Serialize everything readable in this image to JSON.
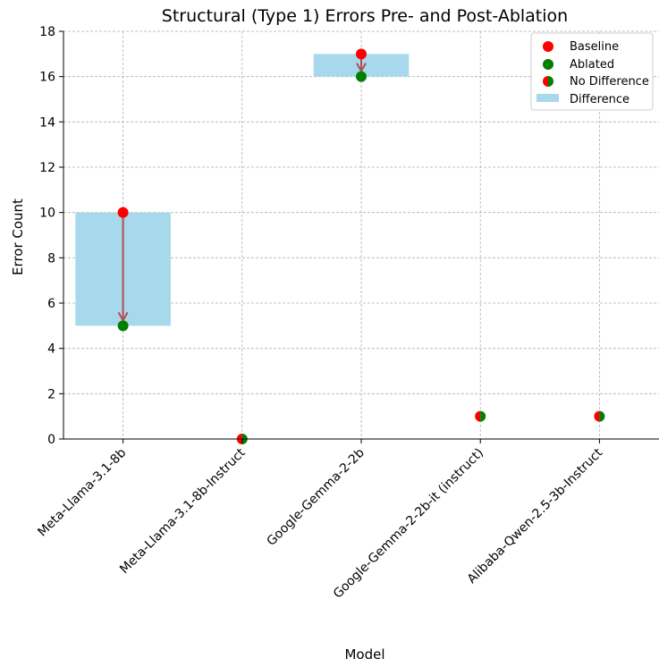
{
  "chart_data": {
    "type": "scatter",
    "title": "Structural (Type 1) Errors Pre- and Post-Ablation",
    "xlabel": "Model",
    "ylabel": "Error Count",
    "ylim": [
      0,
      18
    ],
    "yticks": [
      0,
      2,
      4,
      6,
      8,
      10,
      12,
      14,
      16,
      18
    ],
    "grid": true,
    "legend_position": "top-right",
    "categories": [
      "Meta-Llama-3.1-8b",
      "Meta-Llama-3.1-8b-Instruct",
      "Google-Gemma-2-2b",
      "Google-Gemma-2-2b-it (instruct)",
      "Alibaba-Qwen-2.5-3b-Instruct"
    ],
    "series": [
      {
        "name": "Baseline",
        "values": [
          10,
          0,
          17,
          1,
          1
        ],
        "color": "#ff0000"
      },
      {
        "name": "Ablated",
        "values": [
          5,
          0,
          16,
          1,
          1
        ],
        "color": "#008000"
      }
    ],
    "legend": {
      "baseline": "Baseline",
      "ablated": "Ablated",
      "no_difference": "No Difference",
      "difference": "Difference"
    },
    "colors": {
      "baseline": "#ff0000",
      "ablated": "#008000",
      "difference_fill": "#a8d8ec",
      "arrow": "#b05050",
      "grid": "#b0b0b0"
    }
  }
}
